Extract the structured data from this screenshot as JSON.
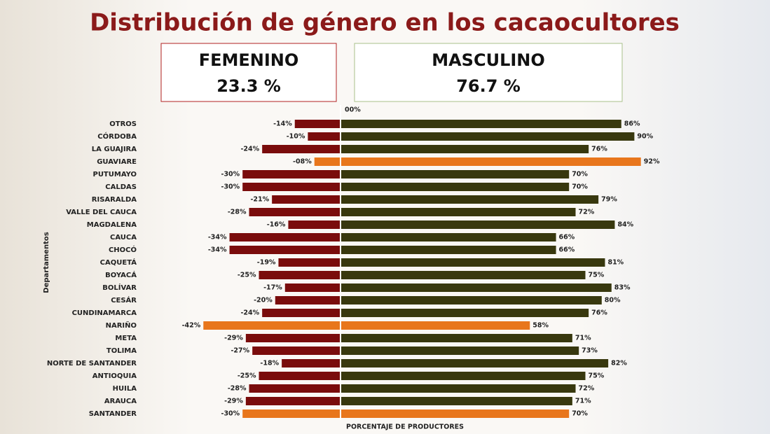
{
  "chart_data": {
    "type": "diverging-bar",
    "title": "Distribución de género en los cacaocultores",
    "y_label": "Departamentos",
    "x_label": "PORCENTAJE DE PRODUCTORES",
    "categories": [
      "OTROS",
      "CÓRDOBA",
      "LA GUAJIRA",
      "GUAVIARE",
      "PUTUMAYO",
      "CALDAS",
      "RISARALDA",
      "VALLE DEL CAUCA",
      "MAGDALENA",
      "CAUCA",
      "CHOCÓ",
      "CAQUETÁ",
      "BOYACÁ",
      "BOLÍVAR",
      "CESÁR",
      "CUNDINAMARCA",
      "NARIÑO",
      "META",
      "TOLIMA",
      "NORTE DE SANTANDER",
      "ANTIOQUIA",
      "HUILA",
      "ARAUCA",
      "SANTANDER"
    ],
    "xlim": [
      -50,
      100
    ],
    "xticks": [
      {
        "value": 0,
        "label": "00%"
      }
    ],
    "series": [
      {
        "name": "FEMENINO",
        "total": 23.3,
        "total_label": "23.3 %",
        "colors": [
          "#7a0c0c",
          "#7a0c0c",
          "#7a0c0c",
          "#e8761c",
          "#7a0c0c",
          "#7a0c0c",
          "#7a0c0c",
          "#7a0c0c",
          "#7a0c0c",
          "#7a0c0c",
          "#7a0c0c",
          "#7a0c0c",
          "#7a0c0c",
          "#7a0c0c",
          "#7a0c0c",
          "#7a0c0c",
          "#e8761c",
          "#7a0c0c",
          "#7a0c0c",
          "#7a0c0c",
          "#7a0c0c",
          "#7a0c0c",
          "#7a0c0c",
          "#e8761c"
        ],
        "values": [
          -14,
          -10,
          -24,
          -8,
          -30,
          -30,
          -21,
          -28,
          -16,
          -34,
          -34,
          -19,
          -25,
          -17,
          -20,
          -24,
          -42,
          -29,
          -27,
          -18,
          -25,
          -28,
          -29,
          -30
        ],
        "value_labels": [
          "-14%",
          "-10%",
          "-24%",
          "-08%",
          "-30%",
          "-30%",
          "-21%",
          "-28%",
          "-16%",
          "-34%",
          "-34%",
          "-19%",
          "-25%",
          "-17%",
          "-20%",
          "-24%",
          "-42%",
          "-29%",
          "-27%",
          "-18%",
          "-25%",
          "-28%",
          "-29%",
          "-30%"
        ]
      },
      {
        "name": "MASCULINO",
        "total": 76.7,
        "total_label": "76.7 %",
        "colors": [
          "#38380e",
          "#38380e",
          "#38380e",
          "#e8761c",
          "#38380e",
          "#38380e",
          "#38380e",
          "#38380e",
          "#38380e",
          "#38380e",
          "#38380e",
          "#38380e",
          "#38380e",
          "#38380e",
          "#38380e",
          "#38380e",
          "#e8761c",
          "#38380e",
          "#38380e",
          "#38380e",
          "#38380e",
          "#38380e",
          "#38380e",
          "#e8761c"
        ],
        "values": [
          86,
          90,
          76,
          92,
          70,
          70,
          79,
          72,
          84,
          66,
          66,
          81,
          75,
          83,
          80,
          76,
          58,
          71,
          73,
          82,
          75,
          72,
          71,
          70
        ],
        "value_labels": [
          "86%",
          "90%",
          "76%",
          "92%",
          "70%",
          "70%",
          "79%",
          "72%",
          "84%",
          "66%",
          "66%",
          "81%",
          "75%",
          "83%",
          "80%",
          "76%",
          "58%",
          "71%",
          "73%",
          "82%",
          "75%",
          "72%",
          "71%",
          "70%"
        ]
      }
    ]
  }
}
